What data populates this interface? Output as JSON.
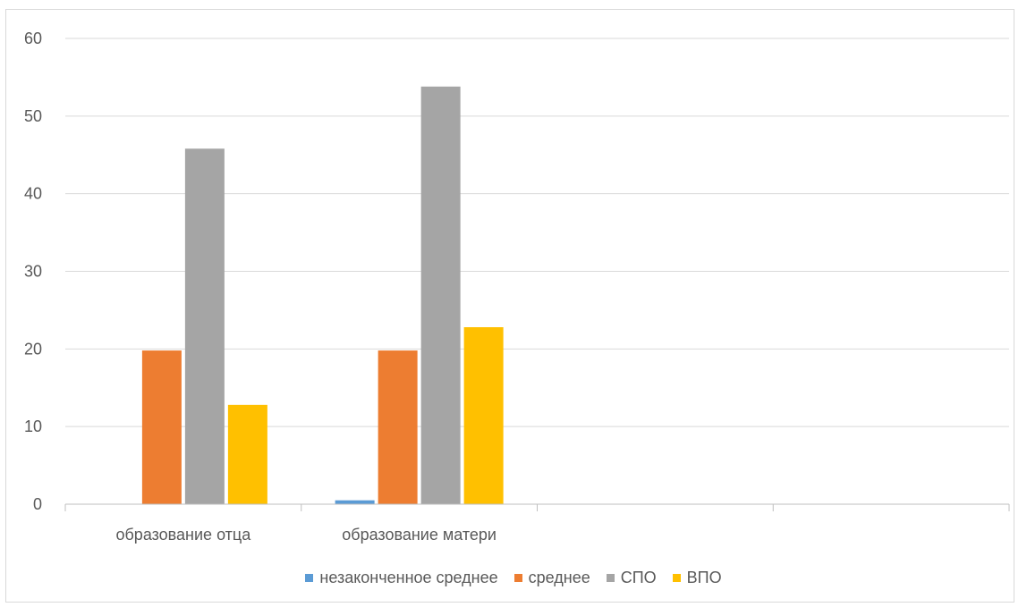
{
  "chart_data": {
    "type": "bar",
    "title": "",
    "xlabel": "",
    "ylabel": "",
    "ylim": [
      0,
      60
    ],
    "yticks": [
      0,
      10,
      20,
      30,
      40,
      50,
      60
    ],
    "grid": true,
    "legend_position": "bottom",
    "categories": [
      "образование отца",
      "образование матери",
      "",
      ""
    ],
    "series": [
      {
        "name": "незаконченное среднее",
        "color": "#5b9bd5",
        "values": [
          0,
          0.5,
          null,
          null
        ]
      },
      {
        "name": "среднее",
        "color": "#ed7d31",
        "values": [
          19.8,
          19.8,
          null,
          null
        ]
      },
      {
        "name": "СПО",
        "color": "#a5a5a5",
        "values": [
          45.8,
          53.8,
          null,
          null
        ]
      },
      {
        "name": "ВПО",
        "color": "#ffc000",
        "values": [
          12.8,
          22.8,
          null,
          null
        ]
      }
    ]
  }
}
